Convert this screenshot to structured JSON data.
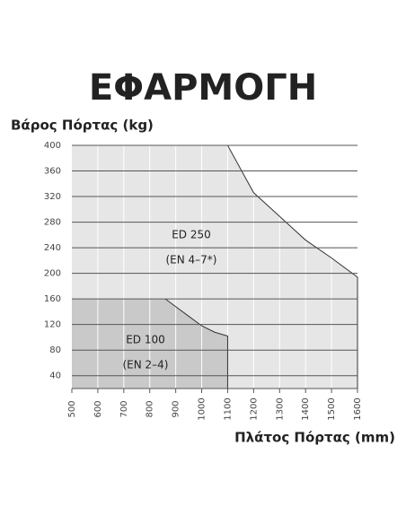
{
  "chart_data": {
    "type": "area",
    "title": "ΕΦΑΡΜΟΓΗ",
    "y_label": "Βάρος Πόρτας (kg)",
    "x_label": "Πλάτος Πόρτας (mm)",
    "series": [
      {
        "name": "ED 250",
        "annotation": "(EN 4–7*)",
        "color": "#e6e6e6",
        "x": [
          500,
          1100,
          1200,
          1300,
          1400,
          1500,
          1600
        ],
        "values": [
          400,
          400,
          326,
          289,
          252,
          224,
          194
        ]
      },
      {
        "name": "ED 100",
        "annotation": "(EN 2–4)",
        "color": "#c9c9c9",
        "x": [
          500,
          860,
          900,
          950,
          1000,
          1050,
          1100
        ],
        "values": [
          160,
          160,
          148,
          133,
          118,
          108,
          102
        ]
      }
    ],
    "xlim": [
      500,
      1600
    ],
    "xticks": [
      500,
      600,
      700,
      800,
      900,
      1000,
      1100,
      1200,
      1300,
      1400,
      1500,
      1600
    ],
    "ylim": [
      20,
      400
    ],
    "yticks": [
      40,
      80,
      120,
      160,
      200,
      240,
      280,
      320,
      360,
      400
    ],
    "grid": true
  }
}
